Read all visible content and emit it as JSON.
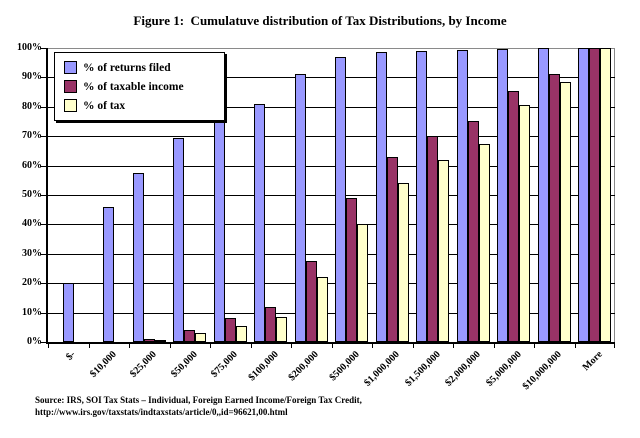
{
  "figure": {
    "title": "Figure 1:  Cumulatuve distribution of Tax Distributions, by Income",
    "source_line1": "Source: IRS, SOI Tax Stats – Individual, Foreign Earned Income/Foreign Tax Credit,",
    "source_line2": "http://www.irs.gov/taxstats/indtaxstats/article/0,,id=96621,00.html"
  },
  "chart_data": {
    "type": "bar",
    "title": "Figure 1:  Cumulatuve distribution of Tax Distributions, by Income",
    "categories": [
      "$-",
      "$10,000",
      "$25,000",
      "$50,000",
      "$75,000",
      "$100,000",
      "$200,000",
      "$500,000",
      "$1,000,000",
      "$1,500,000",
      "$2,000,000",
      "$5,000,000",
      "$10,000,000",
      "More"
    ],
    "series": [
      {
        "name": "% of returns filed",
        "color": "#9999FF",
        "values": [
          20,
          46,
          57.5,
          69.5,
          77,
          81,
          91,
          97,
          98.5,
          99,
          99.3,
          99.7,
          99.9,
          100
        ]
      },
      {
        "name": "% of taxable income",
        "color": "#993366",
        "values": [
          0,
          0,
          1,
          4,
          8,
          12,
          27.5,
          49,
          63,
          70,
          75,
          85.5,
          91,
          100
        ]
      },
      {
        "name": "% of tax",
        "color": "#FFFFCC",
        "values": [
          0,
          0,
          0.7,
          3,
          5.5,
          8.5,
          22,
          40,
          54,
          62,
          67.5,
          80.5,
          88.5,
          100
        ]
      }
    ],
    "xlabel": "",
    "ylabel": "",
    "ylim": [
      0,
      100
    ],
    "ytick_step": 10,
    "ytick_labels": [
      "0%",
      "10%",
      "20%",
      "30%",
      "40%",
      "50%",
      "60%",
      "70%",
      "80%",
      "90%",
      "100%"
    ],
    "grid": true,
    "legend_position": "top-left-inside",
    "plot_border_color": "#8a8a8a",
    "gridline_color": "#000000",
    "background_color": "#ffffff"
  }
}
